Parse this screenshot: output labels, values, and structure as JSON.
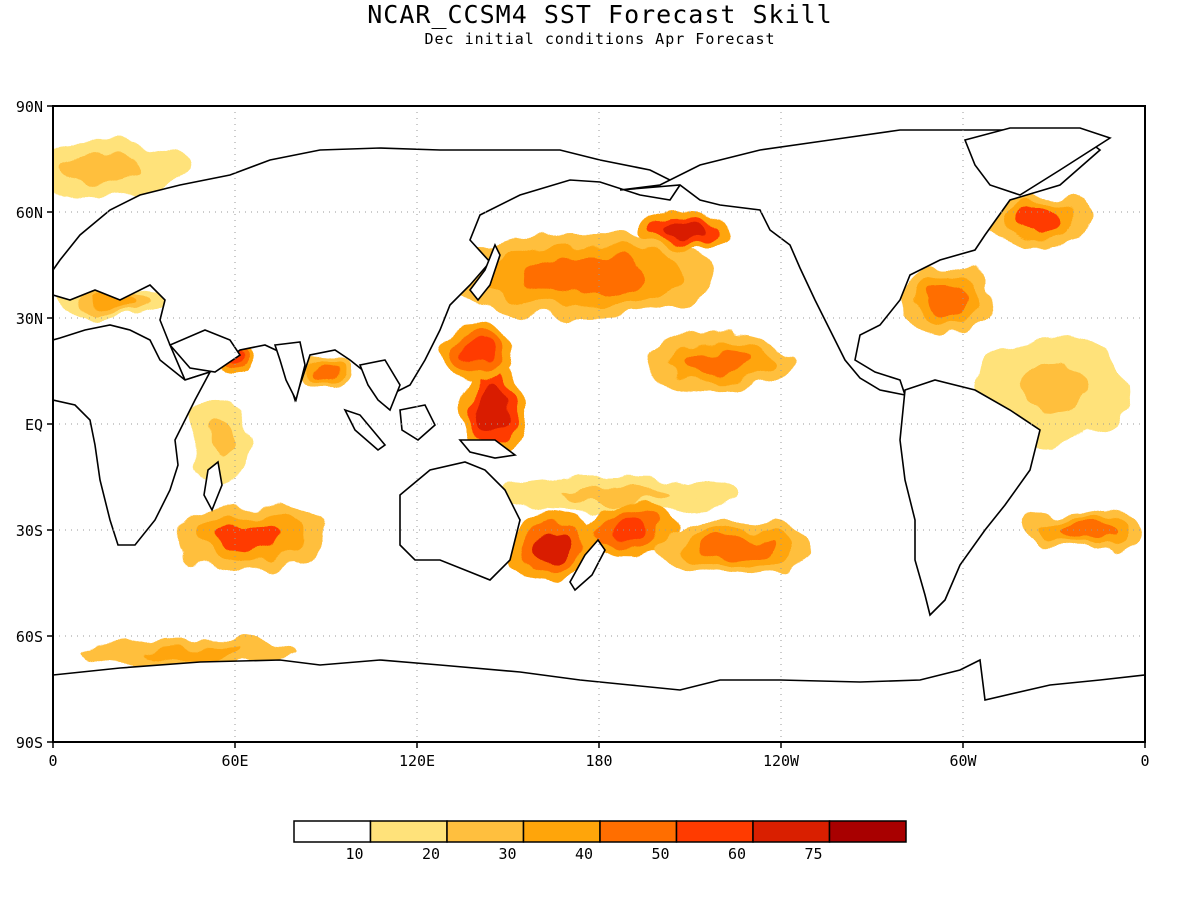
{
  "header": {
    "title": "NCAR_CCSM4 SST Forecast Skill",
    "subtitle": "Dec initial conditions  Apr Forecast"
  },
  "map": {
    "projection": "equirectangular",
    "lon_range": [
      0,
      360
    ],
    "lat_range": [
      -90,
      90
    ],
    "gridlines": "dotted",
    "lat_labels": [
      {
        "lat": 90,
        "text": "90N"
      },
      {
        "lat": 60,
        "text": "60N"
      },
      {
        "lat": 30,
        "text": "30N"
      },
      {
        "lat": 0,
        "text": "EQ"
      },
      {
        "lat": -30,
        "text": "30S"
      },
      {
        "lat": -60,
        "text": "60S"
      },
      {
        "lat": -90,
        "text": "90S"
      }
    ],
    "lon_labels": [
      {
        "lon": 0,
        "text": "0"
      },
      {
        "lon": 60,
        "text": "60E"
      },
      {
        "lon": 120,
        "text": "120E"
      },
      {
        "lon": 180,
        "text": "180"
      },
      {
        "lon": 240,
        "text": "120W"
      },
      {
        "lon": 300,
        "text": "60W"
      },
      {
        "lon": 360,
        "text": "0"
      }
    ]
  },
  "legend": {
    "colors": [
      "#ffffff",
      "#ffe27a",
      "#ffbf3e",
      "#ffa50a",
      "#ff6e00",
      "#ff3b00",
      "#d91f00",
      "#a80000"
    ],
    "labels": [
      "10",
      "20",
      "30",
      "40",
      "50",
      "60",
      "75"
    ]
  },
  "chart_data": {
    "type": "heatmap",
    "variable": "SST forecast skill",
    "lon_range": [
      0,
      360
    ],
    "lat_range": [
      -90,
      90
    ],
    "levels": [
      10,
      20,
      30,
      40,
      50,
      60,
      75
    ],
    "regions": [
      {
        "lon": 175,
        "lat": 42,
        "rx": 45,
        "ry": 12,
        "value": 45
      },
      {
        "lon": 208,
        "lat": 55,
        "rx": 15,
        "ry": 6,
        "value": 68
      },
      {
        "lon": 145,
        "lat": 5,
        "rx": 10,
        "ry": 14,
        "value": 65
      },
      {
        "lon": 220,
        "lat": 18,
        "rx": 25,
        "ry": 8,
        "value": 45
      },
      {
        "lon": 140,
        "lat": 20,
        "rx": 12,
        "ry": 8,
        "value": 55
      },
      {
        "lon": 185,
        "lat": -20,
        "rx": 40,
        "ry": 5,
        "value": 25
      },
      {
        "lon": 165,
        "lat": -35,
        "rx": 15,
        "ry": 10,
        "value": 60
      },
      {
        "lon": 190,
        "lat": -30,
        "rx": 15,
        "ry": 8,
        "value": 55
      },
      {
        "lon": 225,
        "lat": -35,
        "rx": 25,
        "ry": 8,
        "value": 40
      },
      {
        "lon": 65,
        "lat": -32,
        "rx": 25,
        "ry": 10,
        "value": 50
      },
      {
        "lon": 45,
        "lat": -65,
        "rx": 35,
        "ry": 4,
        "value": 38
      },
      {
        "lon": 60,
        "lat": 20,
        "rx": 6,
        "ry": 6,
        "value": 55
      },
      {
        "lon": 90,
        "lat": 15,
        "rx": 8,
        "ry": 5,
        "value": 40
      },
      {
        "lon": 295,
        "lat": 35,
        "rx": 15,
        "ry": 10,
        "value": 45
      },
      {
        "lon": 325,
        "lat": 58,
        "rx": 18,
        "ry": 7,
        "value": 50
      },
      {
        "lon": 340,
        "lat": -30,
        "rx": 20,
        "ry": 6,
        "value": 45
      },
      {
        "lon": 20,
        "lat": 35,
        "rx": 18,
        "ry": 5,
        "value": 35
      },
      {
        "lon": 15,
        "lat": 72,
        "rx": 30,
        "ry": 8,
        "value": 25
      },
      {
        "lon": 55,
        "lat": -5,
        "rx": 10,
        "ry": 12,
        "value": 25
      },
      {
        "lon": 330,
        "lat": 10,
        "rx": 25,
        "ry": 15,
        "value": 20
      }
    ]
  }
}
